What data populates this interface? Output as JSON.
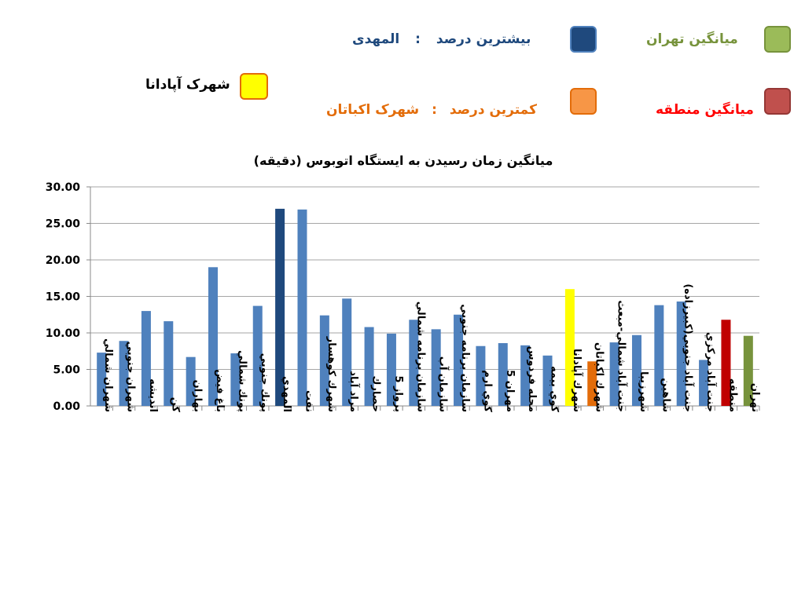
{
  "legend": {
    "highest": {
      "label": "بیشترین درصد",
      "sep": ":",
      "value": "المهدی",
      "color": "#1f497d"
    },
    "lowest": {
      "label": "کمترین درصد",
      "sep": ":",
      "value": "شهرک اکباتان",
      "color": "#e36c09"
    },
    "tehran_avg": {
      "label": "میانگین    تهران",
      "color": "#77933c"
    },
    "region_avg": {
      "label": "میانگین منطقه",
      "color": "#c00000"
    },
    "apadana": {
      "label": "شهرک آپادانا",
      "color": "#ffff00"
    }
  },
  "chart_data": {
    "type": "bar",
    "title": "میانگین زمان رسیدن به ایستگاه اتوبوس (دقیقه)",
    "xlabel": "",
    "ylabel": "",
    "ylim": [
      0,
      30
    ],
    "yticks": [
      "0.00",
      "5.00",
      "10.00",
      "15.00",
      "20.00",
      "25.00",
      "30.00"
    ],
    "grid": true,
    "categories": [
      "شهران شمالي",
      "شهران جنوبي",
      "انديشه",
      "كن",
      "بهاران",
      "باغ فيض",
      "پونك شمالي",
      "پونك جنوبي",
      "المهدي",
      "نفت",
      "شهرك كوهسار",
      "مراد آباد",
      "حصارك",
      "پرواز 5",
      "سازمان برنامه شمالي",
      "سازمان آب",
      "سازمان برنامه جنوبي",
      "كوي ارم",
      "مهران 5",
      "محله فردوس",
      "كوي بيمه",
      "شهرك آپادانا",
      "شهرك اكباتان",
      "جنت آباد شمالي-مبعث",
      "شهرزيبا",
      "شاهين",
      "جنت آباد جنوبي(كبيرزاده)",
      "جنت آباد مركزي",
      "منطقه",
      "تهران"
    ],
    "values": [
      7.3,
      8.9,
      13.0,
      11.6,
      6.7,
      19.0,
      7.2,
      13.7,
      27.0,
      26.9,
      12.4,
      14.7,
      10.8,
      9.9,
      11.8,
      10.5,
      12.5,
      8.2,
      8.6,
      8.3,
      6.9,
      16.0,
      6.1,
      8.7,
      9.7,
      13.8,
      14.3,
      6.3,
      11.8,
      9.6
    ],
    "colors": [
      "#4f81bd",
      "#4f81bd",
      "#4f81bd",
      "#4f81bd",
      "#4f81bd",
      "#4f81bd",
      "#4f81bd",
      "#4f81bd",
      "#1f497d",
      "#4f81bd",
      "#4f81bd",
      "#4f81bd",
      "#4f81bd",
      "#4f81bd",
      "#4f81bd",
      "#4f81bd",
      "#4f81bd",
      "#4f81bd",
      "#4f81bd",
      "#4f81bd",
      "#4f81bd",
      "#ffff00",
      "#e36c09",
      "#4f81bd",
      "#4f81bd",
      "#4f81bd",
      "#4f81bd",
      "#4f81bd",
      "#c00000",
      "#77933c"
    ]
  }
}
